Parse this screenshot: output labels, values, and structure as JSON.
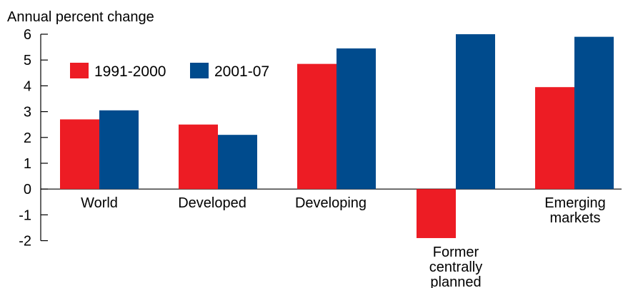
{
  "chart_data": {
    "type": "bar",
    "title": "",
    "ylabel": "Annual percent change",
    "xlabel": "",
    "ylim": [
      -2,
      6
    ],
    "yticks": [
      6,
      5,
      4,
      3,
      2,
      1,
      0,
      -1,
      -2
    ],
    "grid": false,
    "legend": {
      "position": "top-left"
    },
    "categories": [
      "World",
      "Developed",
      "Developing",
      "Former centrally planned",
      "Emerging markets"
    ],
    "category_labels": [
      [
        "World"
      ],
      [
        "Developed"
      ],
      [
        "Developing"
      ],
      [
        "Former",
        "centrally",
        "planned"
      ],
      [
        "Emerging",
        "markets"
      ]
    ],
    "series": [
      {
        "name": "1991-2000",
        "color": "#ed1c24",
        "values": [
          2.7,
          2.5,
          4.85,
          -1.9,
          3.95
        ]
      },
      {
        "name": "2001-07",
        "color": "#004b8d",
        "values": [
          3.05,
          2.1,
          5.45,
          6.0,
          5.9
        ]
      }
    ]
  }
}
